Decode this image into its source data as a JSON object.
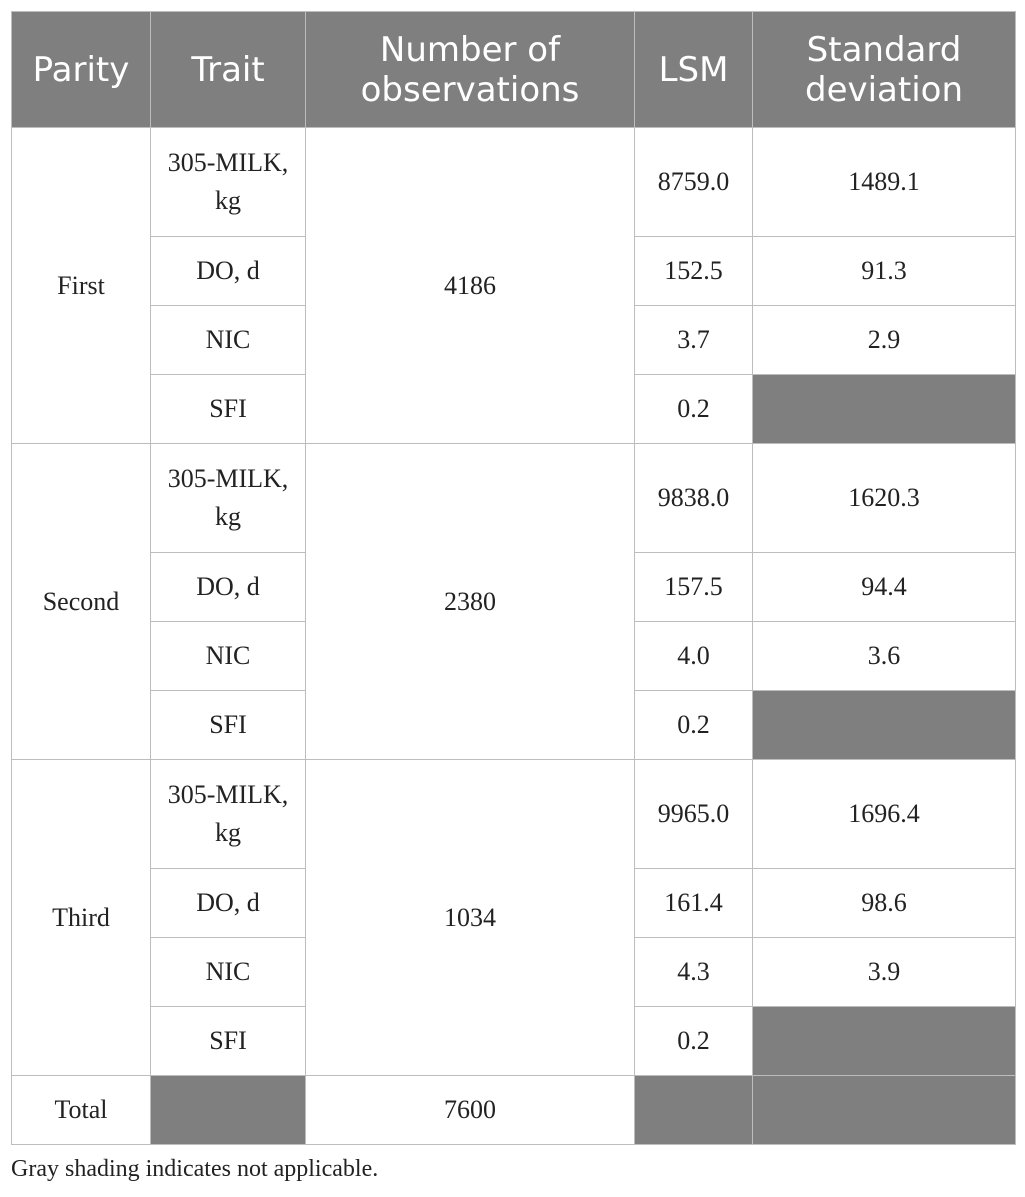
{
  "table": {
    "headers": {
      "parity": "Parity",
      "trait": "Trait",
      "observations": "Number of observations",
      "lsm": "LSM",
      "sd": "Standard deviation"
    },
    "groups": [
      {
        "parity": "First",
        "observations": "4186",
        "rows": [
          {
            "trait": "305-MILK, kg",
            "lsm": "8759.0",
            "sd": "1489.1"
          },
          {
            "trait": "DO, d",
            "lsm": "152.5",
            "sd": "91.3"
          },
          {
            "trait": "NIC",
            "lsm": "3.7",
            "sd": "2.9"
          },
          {
            "trait": "SFI",
            "lsm": "0.2",
            "sd": ""
          }
        ]
      },
      {
        "parity": "Second",
        "observations": "2380",
        "rows": [
          {
            "trait": "305-MILK, kg",
            "lsm": "9838.0",
            "sd": "1620.3"
          },
          {
            "trait": "DO, d",
            "lsm": "157.5",
            "sd": "94.4"
          },
          {
            "trait": "NIC",
            "lsm": "4.0",
            "sd": "3.6"
          },
          {
            "trait": "SFI",
            "lsm": "0.2",
            "sd": ""
          }
        ]
      },
      {
        "parity": "Third",
        "observations": "1034",
        "rows": [
          {
            "trait": "305-MILK, kg",
            "lsm": "9965.0",
            "sd": "1696.4"
          },
          {
            "trait": "DO, d",
            "lsm": "161.4",
            "sd": "98.6"
          },
          {
            "trait": "NIC",
            "lsm": "4.3",
            "sd": "3.9"
          },
          {
            "trait": "SFI",
            "lsm": "0.2",
            "sd": ""
          }
        ]
      }
    ],
    "total": {
      "label": "Total",
      "observations": "7600"
    },
    "shading_color": "#7f7f7f",
    "header_color": "#7f7f7f"
  },
  "footnote": "Gray shading indicates not applicable."
}
